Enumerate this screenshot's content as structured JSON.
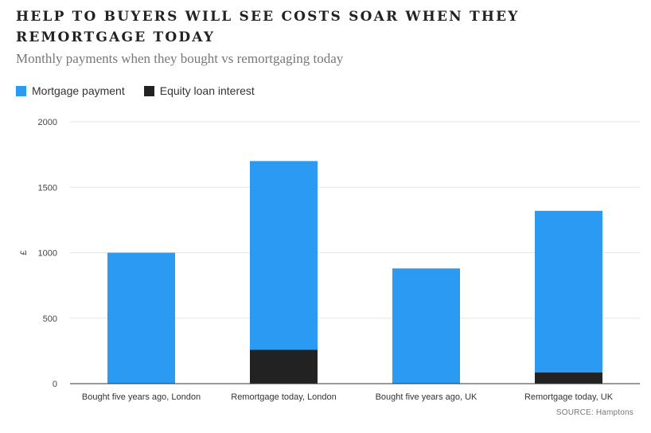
{
  "header": {
    "title": "HELP TO BUYERS WILL SEE COSTS SOAR WHEN THEY REMORTGAGE TODAY",
    "subtitle": "Monthly payments when they bought vs remortgaging today"
  },
  "source": "SOURCE: Hamptons",
  "colors": {
    "mortgage": "#2b9af3",
    "equity": "#222222",
    "grid": "#e6e6e6",
    "axis": "#333333"
  },
  "chart_data": {
    "type": "bar",
    "stacked": true,
    "categories": [
      "Bought five years ago, London",
      "Remortgage today, London",
      "Bought five years ago, UK",
      "Remortgage today, UK"
    ],
    "series": [
      {
        "name": "Equity loan interest",
        "values": [
          0,
          260,
          0,
          85
        ]
      },
      {
        "name": "Mortgage payment",
        "values": [
          1000,
          1440,
          880,
          1235
        ]
      }
    ],
    "title": "HELP TO BUYERS WILL SEE COSTS SOAR WHEN THEY REMORTGAGE TODAY",
    "subtitle": "Monthly payments when they bought vs remortgaging today",
    "xlabel": "",
    "ylabel": "£",
    "ylim": [
      0,
      2000
    ],
    "yticks": [
      0,
      500,
      1000,
      1500,
      2000
    ],
    "grid": true,
    "legend": "top-left"
  }
}
